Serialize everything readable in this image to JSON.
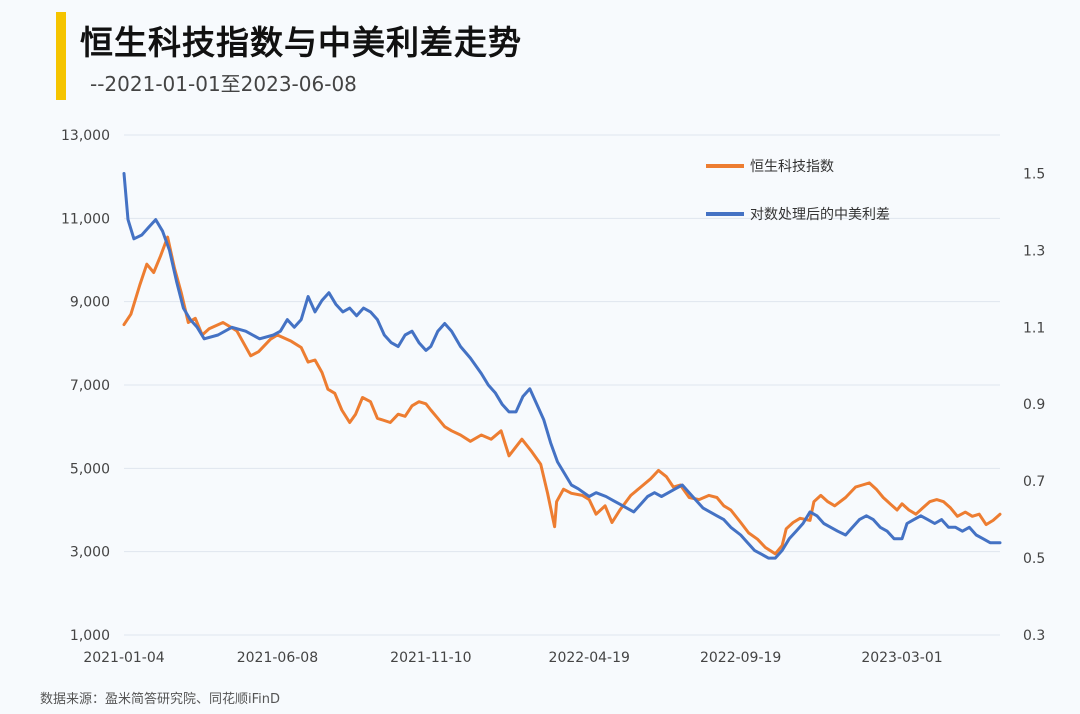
{
  "header": {
    "title": "恒生科技指数与中美利差走势",
    "subtitle": "--2021-01-01至2023-06-08"
  },
  "footer": {
    "source": "数据来源：盈米简答研究院、同花顺iFinD"
  },
  "colors": {
    "accent": "#f5c400",
    "series_orange": "#ed7d31",
    "series_blue": "#4472c4",
    "grid": "#dfe5ee"
  },
  "chart_data": {
    "type": "line",
    "title": "恒生科技指数与中美利差走势",
    "subtitle": "--2021-01-01至2023-06-08",
    "x_tick_labels": [
      "2021-01-04",
      "2021-06-08",
      "2021-11-10",
      "2022-04-19",
      "2022-09-19",
      "2023-03-01"
    ],
    "x_range": [
      "2021-01-04",
      "2023-06-08"
    ],
    "y_left": {
      "ylim": [
        1000,
        13000
      ],
      "ticks": [
        "1,000",
        "3,000",
        "5,000",
        "7,000",
        "9,000",
        "11,000",
        "13,000"
      ]
    },
    "y_right": {
      "ylim": [
        0.3,
        1.6
      ],
      "ticks": [
        "0.3",
        "0.5",
        "0.7",
        "0.9",
        "1.1",
        "1.3",
        "1.5"
      ]
    },
    "grid": true,
    "legend_position": "top-right",
    "series": [
      {
        "name": "恒生科技指数",
        "axis": "left",
        "color": "#ed7d31",
        "points": [
          [
            "2021-01-04",
            8450
          ],
          [
            "2021-01-11",
            8700
          ],
          [
            "2021-01-20",
            9400
          ],
          [
            "2021-01-27",
            9900
          ],
          [
            "2021-02-03",
            9700
          ],
          [
            "2021-02-10",
            10100
          ],
          [
            "2021-02-17",
            10550
          ],
          [
            "2021-02-24",
            9800
          ],
          [
            "2021-03-03",
            9200
          ],
          [
            "2021-03-10",
            8500
          ],
          [
            "2021-03-17",
            8600
          ],
          [
            "2021-03-24",
            8200
          ],
          [
            "2021-03-31",
            8350
          ],
          [
            "2021-04-14",
            8500
          ],
          [
            "2021-04-28",
            8300
          ],
          [
            "2021-05-12",
            7700
          ],
          [
            "2021-05-20",
            7800
          ],
          [
            "2021-06-01",
            8100
          ],
          [
            "2021-06-08",
            8200
          ],
          [
            "2021-06-22",
            8050
          ],
          [
            "2021-07-02",
            7900
          ],
          [
            "2021-07-09",
            7550
          ],
          [
            "2021-07-16",
            7600
          ],
          [
            "2021-07-23",
            7300
          ],
          [
            "2021-07-29",
            6900
          ],
          [
            "2021-08-05",
            6800
          ],
          [
            "2021-08-12",
            6400
          ],
          [
            "2021-08-20",
            6100
          ],
          [
            "2021-08-26",
            6300
          ],
          [
            "2021-09-02",
            6700
          ],
          [
            "2021-09-10",
            6600
          ],
          [
            "2021-09-17",
            6200
          ],
          [
            "2021-09-30",
            6100
          ],
          [
            "2021-10-08",
            6300
          ],
          [
            "2021-10-15",
            6250
          ],
          [
            "2021-10-22",
            6500
          ],
          [
            "2021-10-29",
            6600
          ],
          [
            "2021-11-05",
            6550
          ],
          [
            "2021-11-10",
            6400
          ],
          [
            "2021-11-17",
            6200
          ],
          [
            "2021-11-24",
            6000
          ],
          [
            "2021-12-01",
            5900
          ],
          [
            "2021-12-10",
            5800
          ],
          [
            "2021-12-20",
            5650
          ],
          [
            "2021-12-31",
            5800
          ],
          [
            "2022-01-10",
            5700
          ],
          [
            "2022-01-20",
            5900
          ],
          [
            "2022-01-28",
            5300
          ],
          [
            "2022-02-10",
            5700
          ],
          [
            "2022-02-20",
            5400
          ],
          [
            "2022-03-01",
            5100
          ],
          [
            "2022-03-08",
            4400
          ],
          [
            "2022-03-15",
            3600
          ],
          [
            "2022-03-17",
            4200
          ],
          [
            "2022-03-24",
            4500
          ],
          [
            "2022-04-01",
            4400
          ],
          [
            "2022-04-12",
            4350
          ],
          [
            "2022-04-19",
            4250
          ],
          [
            "2022-04-26",
            3900
          ],
          [
            "2022-05-05",
            4100
          ],
          [
            "2022-05-12",
            3700
          ],
          [
            "2022-05-20",
            4000
          ],
          [
            "2022-05-31",
            4350
          ],
          [
            "2022-06-10",
            4550
          ],
          [
            "2022-06-20",
            4750
          ],
          [
            "2022-06-28",
            4950
          ],
          [
            "2022-07-06",
            4800
          ],
          [
            "2022-07-13",
            4550
          ],
          [
            "2022-07-20",
            4600
          ],
          [
            "2022-07-29",
            4300
          ],
          [
            "2022-08-08",
            4250
          ],
          [
            "2022-08-18",
            4350
          ],
          [
            "2022-08-26",
            4300
          ],
          [
            "2022-09-02",
            4100
          ],
          [
            "2022-09-09",
            4000
          ],
          [
            "2022-09-19",
            3700
          ],
          [
            "2022-09-27",
            3450
          ],
          [
            "2022-10-06",
            3300
          ],
          [
            "2022-10-14",
            3100
          ],
          [
            "2022-10-24",
            2950
          ],
          [
            "2022-10-31",
            3150
          ],
          [
            "2022-11-04",
            3550
          ],
          [
            "2022-11-11",
            3700
          ],
          [
            "2022-11-18",
            3800
          ],
          [
            "2022-11-28",
            3750
          ],
          [
            "2022-12-02",
            4200
          ],
          [
            "2022-12-09",
            4350
          ],
          [
            "2022-12-16",
            4200
          ],
          [
            "2022-12-23",
            4100
          ],
          [
            "2023-01-03",
            4300
          ],
          [
            "2023-01-13",
            4550
          ],
          [
            "2023-01-20",
            4600
          ],
          [
            "2023-01-27",
            4650
          ],
          [
            "2023-02-03",
            4500
          ],
          [
            "2023-02-10",
            4300
          ],
          [
            "2023-02-17",
            4150
          ],
          [
            "2023-02-24",
            4000
          ],
          [
            "2023-03-01",
            4150
          ],
          [
            "2023-03-08",
            4000
          ],
          [
            "2023-03-15",
            3900
          ],
          [
            "2023-03-22",
            4050
          ],
          [
            "2023-03-29",
            4200
          ],
          [
            "2023-04-05",
            4250
          ],
          [
            "2023-04-12",
            4200
          ],
          [
            "2023-04-19",
            4050
          ],
          [
            "2023-04-26",
            3850
          ],
          [
            "2023-05-04",
            3950
          ],
          [
            "2023-05-11",
            3850
          ],
          [
            "2023-05-18",
            3900
          ],
          [
            "2023-05-25",
            3650
          ],
          [
            "2023-06-01",
            3750
          ],
          [
            "2023-06-08",
            3900
          ]
        ]
      },
      {
        "name": "对数处理后的中美利差",
        "axis": "right",
        "color": "#4472c4",
        "points": [
          [
            "2021-01-04",
            1.5
          ],
          [
            "2021-01-08",
            1.38
          ],
          [
            "2021-01-14",
            1.33
          ],
          [
            "2021-01-22",
            1.34
          ],
          [
            "2021-01-29",
            1.36
          ],
          [
            "2021-02-05",
            1.38
          ],
          [
            "2021-02-12",
            1.35
          ],
          [
            "2021-02-19",
            1.3
          ],
          [
            "2021-02-26",
            1.22
          ],
          [
            "2021-03-05",
            1.15
          ],
          [
            "2021-03-12",
            1.12
          ],
          [
            "2021-03-19",
            1.1
          ],
          [
            "2021-03-26",
            1.07
          ],
          [
            "2021-04-09",
            1.08
          ],
          [
            "2021-04-23",
            1.1
          ],
          [
            "2021-05-07",
            1.09
          ],
          [
            "2021-05-21",
            1.07
          ],
          [
            "2021-06-04",
            1.08
          ],
          [
            "2021-06-11",
            1.09
          ],
          [
            "2021-06-18",
            1.12
          ],
          [
            "2021-06-25",
            1.1
          ],
          [
            "2021-07-02",
            1.12
          ],
          [
            "2021-07-09",
            1.18
          ],
          [
            "2021-07-16",
            1.14
          ],
          [
            "2021-07-23",
            1.17
          ],
          [
            "2021-07-30",
            1.19
          ],
          [
            "2021-08-06",
            1.16
          ],
          [
            "2021-08-13",
            1.14
          ],
          [
            "2021-08-20",
            1.15
          ],
          [
            "2021-08-27",
            1.13
          ],
          [
            "2021-09-03",
            1.15
          ],
          [
            "2021-09-10",
            1.14
          ],
          [
            "2021-09-17",
            1.12
          ],
          [
            "2021-09-24",
            1.08
          ],
          [
            "2021-10-01",
            1.06
          ],
          [
            "2021-10-08",
            1.05
          ],
          [
            "2021-10-15",
            1.08
          ],
          [
            "2021-10-22",
            1.09
          ],
          [
            "2021-10-29",
            1.06
          ],
          [
            "2021-11-05",
            1.04
          ],
          [
            "2021-11-10",
            1.05
          ],
          [
            "2021-11-17",
            1.09
          ],
          [
            "2021-11-24",
            1.11
          ],
          [
            "2021-12-01",
            1.09
          ],
          [
            "2021-12-10",
            1.05
          ],
          [
            "2021-12-20",
            1.02
          ],
          [
            "2021-12-31",
            0.98
          ],
          [
            "2022-01-07",
            0.95
          ],
          [
            "2022-01-14",
            0.93
          ],
          [
            "2022-01-21",
            0.9
          ],
          [
            "2022-01-28",
            0.88
          ],
          [
            "2022-02-04",
            0.88
          ],
          [
            "2022-02-11",
            0.92
          ],
          [
            "2022-02-18",
            0.94
          ],
          [
            "2022-02-25",
            0.9
          ],
          [
            "2022-03-04",
            0.86
          ],
          [
            "2022-03-11",
            0.8
          ],
          [
            "2022-03-18",
            0.75
          ],
          [
            "2022-03-25",
            0.72
          ],
          [
            "2022-04-01",
            0.69
          ],
          [
            "2022-04-08",
            0.68
          ],
          [
            "2022-04-19",
            0.66
          ],
          [
            "2022-04-26",
            0.67
          ],
          [
            "2022-05-06",
            0.66
          ],
          [
            "2022-05-13",
            0.65
          ],
          [
            "2022-05-20",
            0.64
          ],
          [
            "2022-05-27",
            0.63
          ],
          [
            "2022-06-03",
            0.62
          ],
          [
            "2022-06-10",
            0.64
          ],
          [
            "2022-06-17",
            0.66
          ],
          [
            "2022-06-24",
            0.67
          ],
          [
            "2022-07-01",
            0.66
          ],
          [
            "2022-07-08",
            0.67
          ],
          [
            "2022-07-15",
            0.68
          ],
          [
            "2022-07-22",
            0.69
          ],
          [
            "2022-07-29",
            0.67
          ],
          [
            "2022-08-05",
            0.65
          ],
          [
            "2022-08-12",
            0.63
          ],
          [
            "2022-08-19",
            0.62
          ],
          [
            "2022-08-26",
            0.61
          ],
          [
            "2022-09-02",
            0.6
          ],
          [
            "2022-09-09",
            0.58
          ],
          [
            "2022-09-19",
            0.56
          ],
          [
            "2022-09-26",
            0.54
          ],
          [
            "2022-10-03",
            0.52
          ],
          [
            "2022-10-10",
            0.51
          ],
          [
            "2022-10-17",
            0.5
          ],
          [
            "2022-10-24",
            0.5
          ],
          [
            "2022-10-31",
            0.52
          ],
          [
            "2022-11-07",
            0.55
          ],
          [
            "2022-11-14",
            0.57
          ],
          [
            "2022-11-21",
            0.59
          ],
          [
            "2022-11-28",
            0.62
          ],
          [
            "2022-12-05",
            0.61
          ],
          [
            "2022-12-12",
            0.59
          ],
          [
            "2022-12-19",
            0.58
          ],
          [
            "2022-12-26",
            0.57
          ],
          [
            "2023-01-03",
            0.56
          ],
          [
            "2023-01-10",
            0.58
          ],
          [
            "2023-01-17",
            0.6
          ],
          [
            "2023-01-24",
            0.61
          ],
          [
            "2023-01-31",
            0.6
          ],
          [
            "2023-02-07",
            0.58
          ],
          [
            "2023-02-14",
            0.57
          ],
          [
            "2023-02-21",
            0.55
          ],
          [
            "2023-03-01",
            0.55
          ],
          [
            "2023-03-06",
            0.59
          ],
          [
            "2023-03-13",
            0.6
          ],
          [
            "2023-03-20",
            0.61
          ],
          [
            "2023-03-27",
            0.6
          ],
          [
            "2023-04-03",
            0.59
          ],
          [
            "2023-04-10",
            0.6
          ],
          [
            "2023-04-17",
            0.58
          ],
          [
            "2023-04-24",
            0.58
          ],
          [
            "2023-05-01",
            0.57
          ],
          [
            "2023-05-08",
            0.58
          ],
          [
            "2023-05-15",
            0.56
          ],
          [
            "2023-05-22",
            0.55
          ],
          [
            "2023-05-29",
            0.54
          ],
          [
            "2023-06-08",
            0.54
          ]
        ]
      }
    ]
  }
}
